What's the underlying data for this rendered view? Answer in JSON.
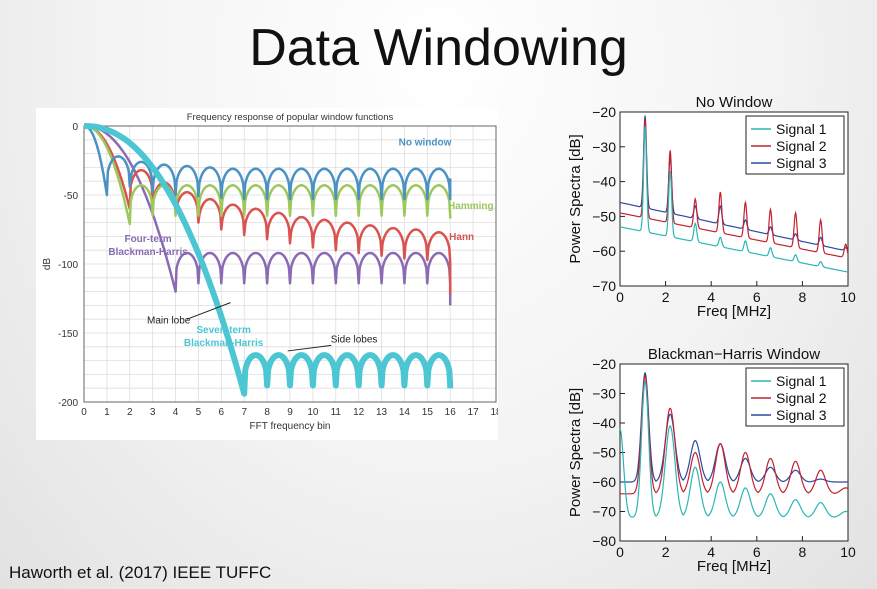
{
  "slide": {
    "title": "Data Windowing",
    "citation": "Haworth et al. (2017) IEEE TUFFC"
  },
  "colors": {
    "no_window": "#4a92c3",
    "hamming": "#9dc85a",
    "hann": "#d9534f",
    "blackman_harris_4": "#8a6bb3",
    "blackman_harris_7": "#4cc6d2",
    "signal1": "#2ab7b4",
    "signal2": "#c4202e",
    "signal3": "#2a4a9e"
  },
  "chart_data": [
    {
      "type": "line",
      "title": "Frequency response of popular window functions",
      "xlabel": "FFT frequency bin",
      "ylabel": "dB",
      "xlim": [
        0,
        18
      ],
      "ylim": [
        -200,
        0
      ],
      "xticks": [
        0,
        1,
        2,
        3,
        4,
        5,
        6,
        7,
        8,
        9,
        10,
        11,
        12,
        13,
        14,
        15,
        16,
        17,
        18
      ],
      "yticks": [
        0,
        -50,
        -100,
        -150,
        -200
      ],
      "grid": true,
      "series": [
        {
          "name": "No window",
          "color_key": "no_window",
          "mainlobe_null": 1,
          "sidelobe_peaks_db": [
            -22,
            -26,
            -28,
            -29,
            -30,
            -31,
            -31,
            -31,
            -31,
            -31,
            -31,
            -31,
            -31,
            -31,
            -31
          ],
          "end_bin": 16,
          "end_db": -38
        },
        {
          "name": "Hamming",
          "color_key": "hamming",
          "mainlobe_null": 2,
          "sidelobe_peaks_db": [
            -43,
            -43,
            -43,
            -43,
            -43,
            -43,
            -43,
            -43,
            -43,
            -43,
            -43,
            -43,
            -43,
            -43
          ],
          "end_bin": 16,
          "end_db": -67
        },
        {
          "name": "Hann",
          "color_key": "hann",
          "mainlobe_null": 2,
          "sidelobe_peaks_db": [
            -32,
            -41,
            -48,
            -53,
            -57,
            -60,
            -63,
            -66,
            -68,
            -70,
            -72,
            -74,
            -75,
            -77
          ],
          "end_bin": 16,
          "end_db": -122
        },
        {
          "name": "Four-term Blackman-Harris",
          "color_key": "blackman_harris_4",
          "mainlobe_null": 4,
          "sidelobe_peaks_db": [
            -92,
            -92,
            -92,
            -92,
            -92,
            -92,
            -92,
            -92,
            -92,
            -92,
            -92,
            -92
          ],
          "end_bin": 16,
          "end_db": -130
        },
        {
          "name": "Seven-term Blackman-Harris",
          "color_key": "blackman_harris_7",
          "mainlobe_null": 7,
          "sidelobe_peaks_db": [
            -166,
            -166,
            -166,
            -166,
            -166,
            -166,
            -166,
            -166,
            -166
          ],
          "end_bin": 16,
          "end_db": -190
        }
      ],
      "annotations": [
        "Main lobe",
        "Side lobes"
      ]
    },
    {
      "type": "line",
      "title": "No Window",
      "xlabel": "Freq [MHz]",
      "ylabel": "Power Spectra [dB]",
      "xlim": [
        0,
        10
      ],
      "ylim": [
        -70,
        -20
      ],
      "xticks": [
        0,
        2,
        4,
        6,
        8,
        10
      ],
      "yticks": [
        -20,
        -30,
        -40,
        -50,
        -60,
        -70
      ],
      "legend_position": "top-right",
      "series": [
        {
          "name": "Signal 1",
          "color_key": "signal1",
          "peaks": [
            [
              1.1,
              -24
            ],
            [
              2.2,
              -37
            ],
            [
              3.3,
              -52
            ],
            [
              4.4,
              -56
            ],
            [
              5.5,
              -57
            ],
            [
              6.6,
              -59
            ],
            [
              7.7,
              -61
            ],
            [
              8.8,
              -63
            ]
          ],
          "floor_start": -53,
          "floor_end": -66
        },
        {
          "name": "Signal 2",
          "color_key": "signal2",
          "peaks": [
            [
              1.1,
              -22
            ],
            [
              2.2,
              -31
            ],
            [
              3.3,
              -45
            ],
            [
              4.4,
              -43
            ],
            [
              5.5,
              -46
            ],
            [
              6.6,
              -48
            ],
            [
              7.7,
              -49
            ],
            [
              8.8,
              -51
            ],
            [
              9.9,
              -58
            ]
          ],
          "floor_start": -49,
          "floor_end": -62
        },
        {
          "name": "Signal 3",
          "color_key": "signal3",
          "peaks": [
            [
              1.1,
              -21
            ],
            [
              2.2,
              -33
            ],
            [
              3.3,
              -47
            ],
            [
              4.4,
              -47
            ],
            [
              5.5,
              -51
            ],
            [
              6.6,
              -53
            ],
            [
              7.7,
              -55
            ],
            [
              8.8,
              -56
            ],
            [
              9.9,
              -59
            ]
          ],
          "floor_start": -46,
          "floor_end": -60
        }
      ]
    },
    {
      "type": "line",
      "title": "Blackman−Harris Window",
      "xlabel": "Freq [MHz]",
      "ylabel": "Power Spectra [dB]",
      "xlim": [
        0,
        10
      ],
      "ylim": [
        -80,
        -20
      ],
      "xticks": [
        0,
        2,
        4,
        6,
        8,
        10
      ],
      "yticks": [
        -20,
        -30,
        -40,
        -50,
        -60,
        -70,
        -80
      ],
      "legend_position": "top-right",
      "series": [
        {
          "name": "Signal 1",
          "color_key": "signal1",
          "peaks": [
            [
              0,
              -42
            ],
            [
              1.1,
              -26
            ],
            [
              2.2,
              -41
            ],
            [
              3.3,
              -55
            ],
            [
              4.4,
              -60
            ],
            [
              5.5,
              -62
            ],
            [
              6.6,
              -64
            ],
            [
              7.7,
              -66
            ],
            [
              8.8,
              -67
            ],
            [
              9.9,
              -70
            ]
          ],
          "floor": -72
        },
        {
          "name": "Signal 2",
          "color_key": "signal2",
          "peaks": [
            [
              1.1,
              -24
            ],
            [
              2.2,
              -35
            ],
            [
              3.3,
              -50
            ],
            [
              4.4,
              -47
            ],
            [
              5.5,
              -50
            ],
            [
              6.6,
              -52
            ],
            [
              7.7,
              -53
            ],
            [
              8.8,
              -56
            ],
            [
              9.9,
              -62
            ]
          ],
          "floor": -64
        },
        {
          "name": "Signal 3",
          "color_key": "signal3",
          "peaks": [
            [
              1.1,
              -23
            ],
            [
              2.2,
              -37
            ],
            [
              3.3,
              -46
            ],
            [
              4.4,
              -47
            ],
            [
              5.5,
              -52
            ],
            [
              6.6,
              -55
            ],
            [
              7.7,
              -56
            ],
            [
              8.8,
              -59
            ],
            [
              9.9,
              -61
            ]
          ],
          "floor": -60
        }
      ]
    }
  ]
}
